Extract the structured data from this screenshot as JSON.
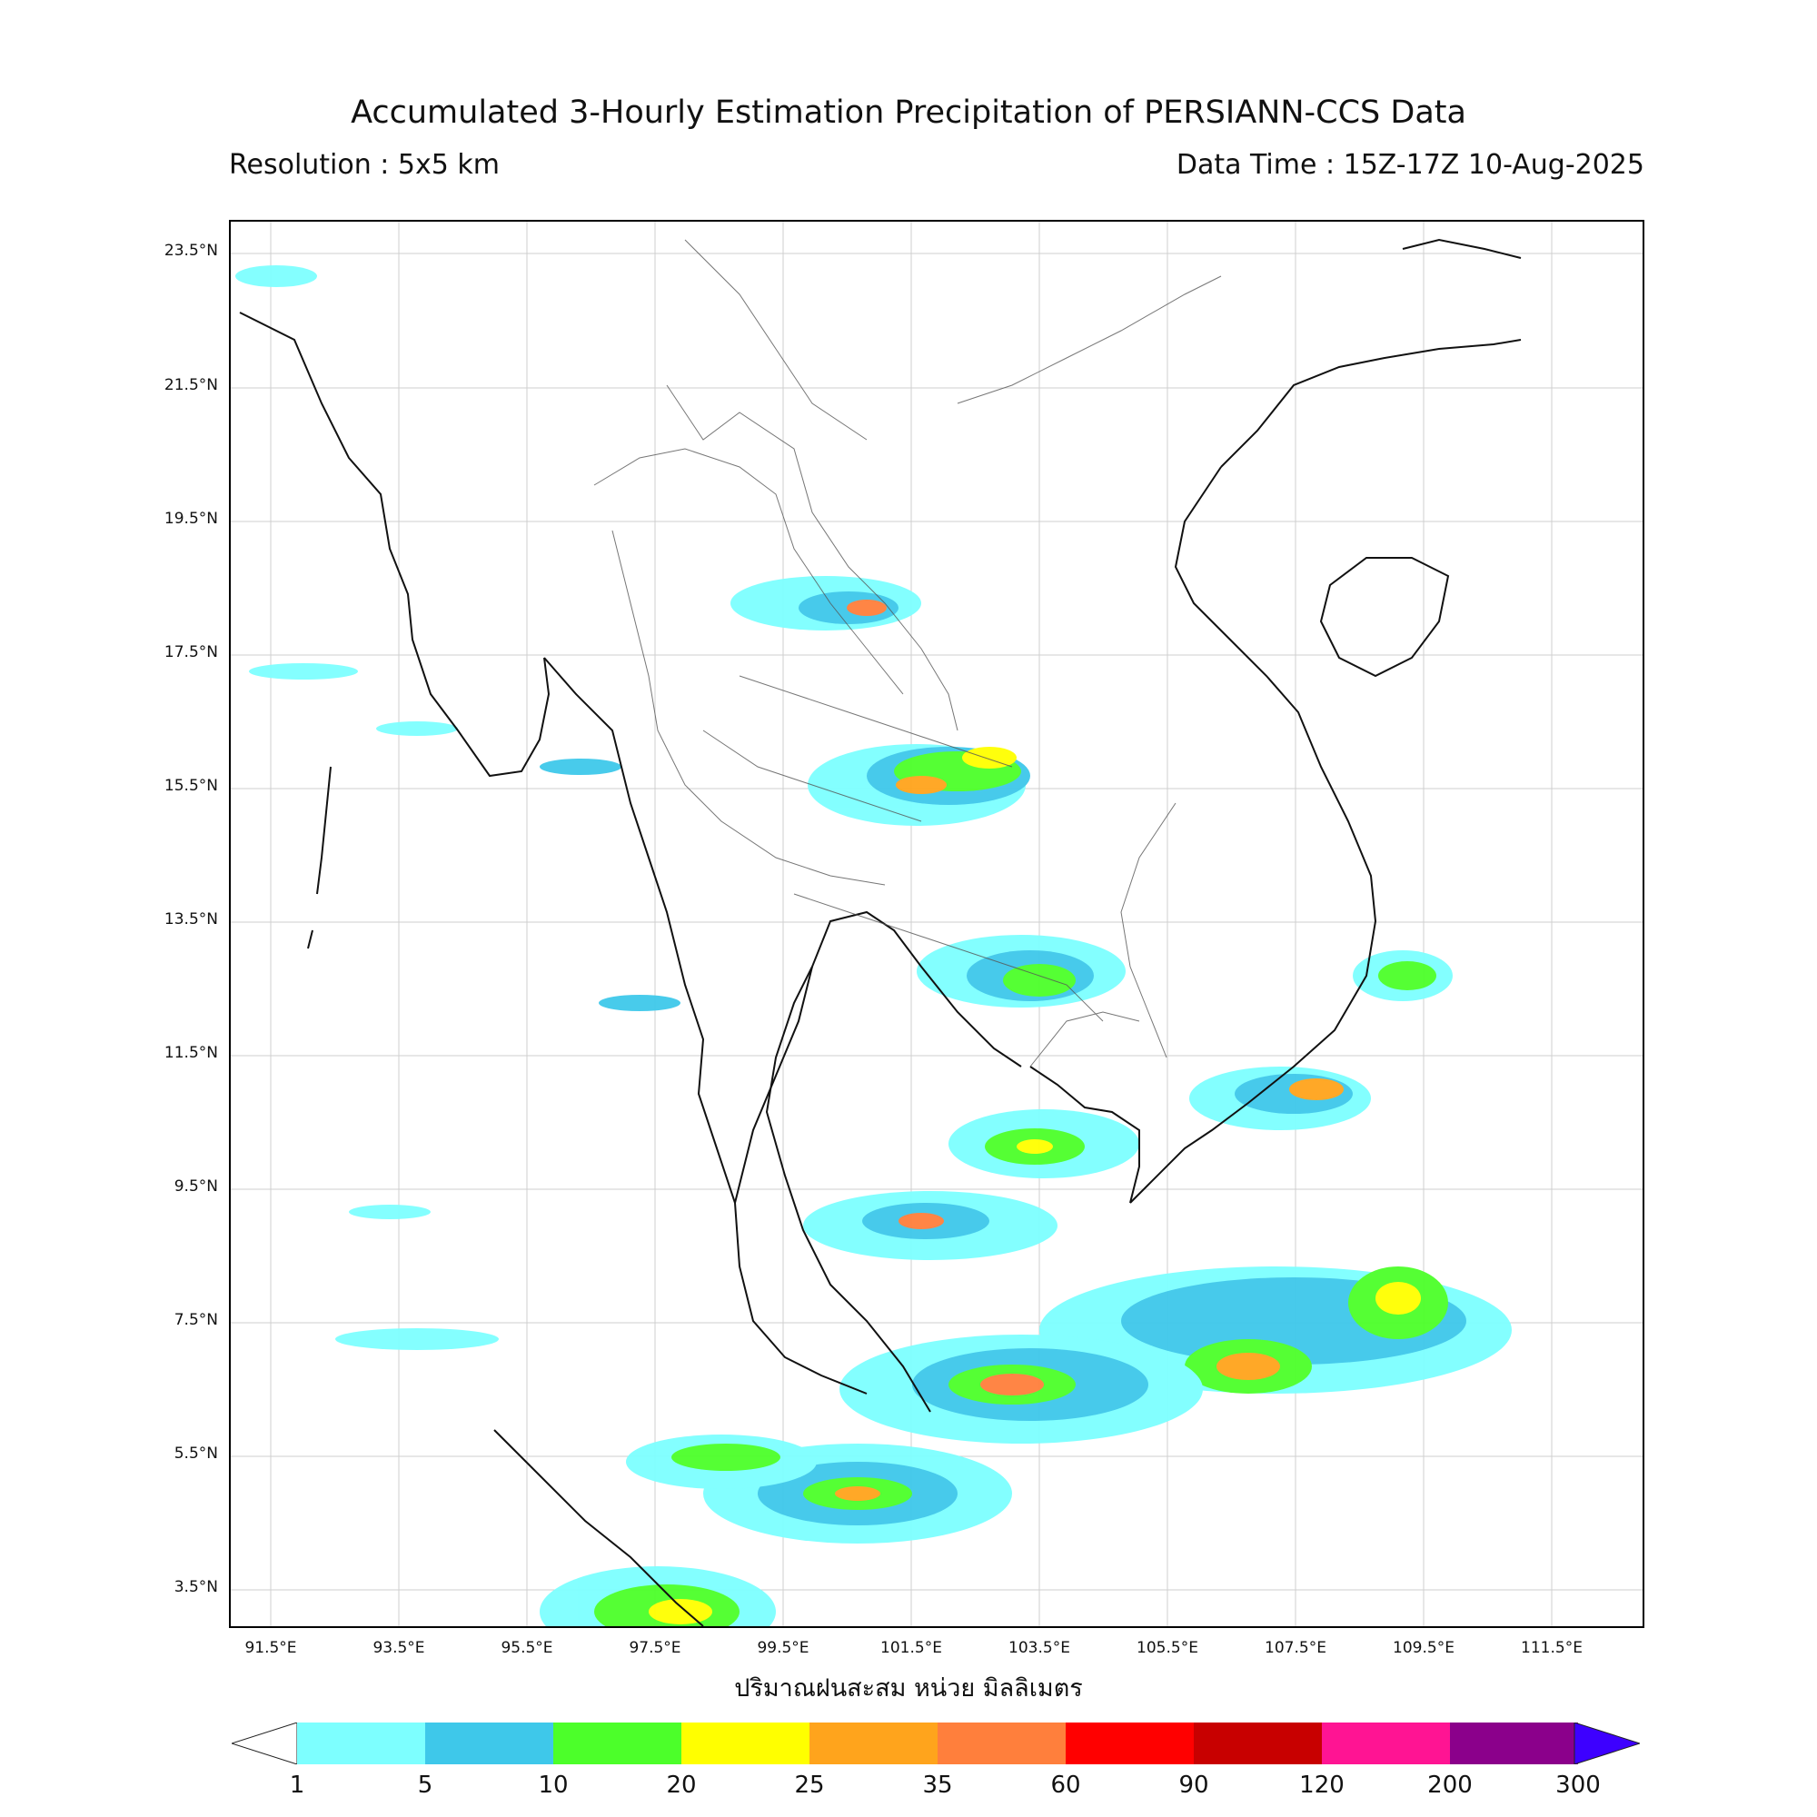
{
  "header": {
    "title": "Accumulated 3-Hourly Estimation Precipitation of PERSIANN-CCS Data",
    "resolution": "Resolution : 5x5 km",
    "data_time": "Data Time : 15Z-17Z 10-Aug-2025"
  },
  "axes": {
    "y_ticks": [
      "23.5°N",
      "21.5°N",
      "19.5°N",
      "17.5°N",
      "15.5°N",
      "13.5°N",
      "11.5°N",
      "9.5°N",
      "7.5°N",
      "5.5°N",
      "3.5°N"
    ],
    "x_ticks": [
      "91.5°E",
      "93.5°E",
      "95.5°E",
      "97.5°E",
      "99.5°E",
      "101.5°E",
      "103.5°E",
      "105.5°E",
      "107.5°E",
      "109.5°E",
      "111.5°E"
    ],
    "x_label": "ปริมาณฝนสะสม หน่วย มิลลิเมตร"
  },
  "colorbar": {
    "labels": [
      "1",
      "5",
      "10",
      "20",
      "25",
      "35",
      "60",
      "90",
      "120",
      "200",
      "300"
    ],
    "colors": [
      "#7dffff",
      "#3ec8ea",
      "#4cff2a",
      "#ffff00",
      "#ffa41c",
      "#ff7f3c",
      "#ff0000",
      "#c80000",
      "#ff1493",
      "#8b008b",
      "#3d00ff"
    ]
  }
}
